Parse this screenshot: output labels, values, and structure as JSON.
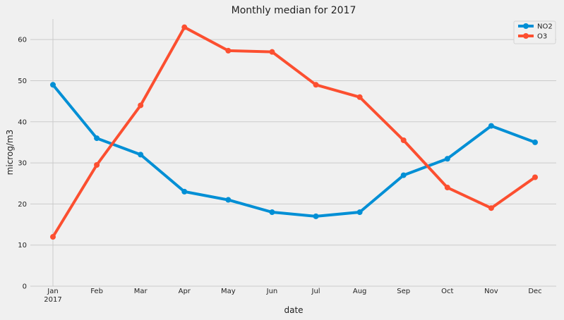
{
  "chart_data": {
    "type": "line",
    "title": "Monthly median for 2017",
    "xlabel": "date",
    "ylabel": "microg/m3",
    "categories": [
      "Jan",
      "Feb",
      "Mar",
      "Apr",
      "May",
      "Jun",
      "Jul",
      "Aug",
      "Sep",
      "Oct",
      "Nov",
      "Dec"
    ],
    "year_label": "2017",
    "ylim": [
      0,
      65
    ],
    "yticks": [
      0,
      10,
      20,
      30,
      40,
      50,
      60
    ],
    "grid": true,
    "legend_position": "top-right",
    "series": [
      {
        "name": "NO2",
        "color": "#008fd5",
        "values": [
          49,
          36,
          32,
          23,
          21,
          18,
          17,
          18,
          27,
          31,
          39,
          35
        ]
      },
      {
        "name": "O3",
        "color": "#fc4f30",
        "values": [
          12,
          29.5,
          44,
          63,
          57.3,
          57,
          49,
          46,
          35.5,
          24,
          19,
          26.5
        ]
      }
    ]
  }
}
